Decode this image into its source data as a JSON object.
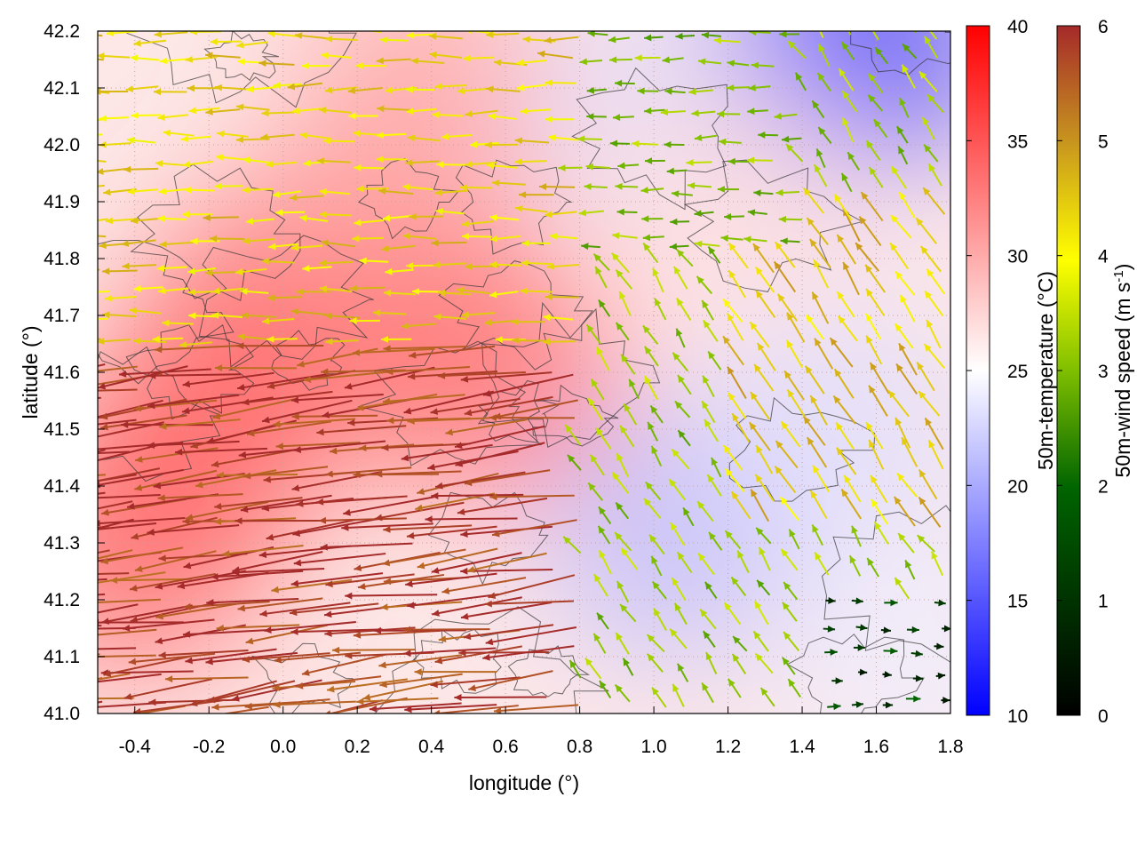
{
  "chart_data": {
    "type": "heatmap",
    "subtype": "temperature field with colored wind vectors and contour lines",
    "title": "",
    "xlabel": "longitude (°)",
    "ylabel": "latitude (°)",
    "xlim": [
      -0.5,
      1.8
    ],
    "ylim": [
      41.0,
      42.2
    ],
    "x_ticks": [
      "-0.4",
      "-0.2",
      "0.0",
      "0.2",
      "0.4",
      "0.6",
      "0.8",
      "1.0",
      "1.2",
      "1.4",
      "1.6",
      "1.8"
    ],
    "y_ticks": [
      "41.0",
      "41.1",
      "41.2",
      "41.3",
      "41.4",
      "41.5",
      "41.6",
      "41.7",
      "41.8",
      "41.9",
      "42.0",
      "42.1",
      "42.2"
    ],
    "grid": "dotted",
    "colorbars": [
      {
        "name": "temperature",
        "label": "50m-temperature (°C)",
        "range": [
          10,
          40
        ],
        "ticks": [
          "10",
          "15",
          "20",
          "25",
          "30",
          "35",
          "40"
        ],
        "colors": [
          "#0000ff",
          "#ffffff",
          "#ff0000"
        ]
      },
      {
        "name": "wind",
        "label_main": "50m-wind speed (m s",
        "label_sup": "-1",
        "label_end": ")",
        "range": [
          0,
          6
        ],
        "ticks": [
          "0",
          "1",
          "2",
          "3",
          "4",
          "5",
          "6"
        ],
        "colors": [
          "#000000",
          "#006400",
          "#7fbf00",
          "#ffff00",
          "#c8961e",
          "#a52a2a"
        ]
      }
    ],
    "temperature_field": [
      {
        "lon": -0.4,
        "lat": 41.3,
        "value": 34
      },
      {
        "lon": -0.2,
        "lat": 41.5,
        "value": 34
      },
      {
        "lon": 0.0,
        "lat": 41.7,
        "value": 34
      },
      {
        "lon": 0.3,
        "lat": 41.9,
        "value": 31
      },
      {
        "lon": 0.55,
        "lat": 41.6,
        "value": 34
      },
      {
        "lon": 0.4,
        "lat": 42.1,
        "value": 30
      },
      {
        "lon": 1.0,
        "lat": 42.05,
        "value": 23
      },
      {
        "lon": 1.55,
        "lat": 42.18,
        "value": 14
      },
      {
        "lon": 1.05,
        "lat": 41.32,
        "value": 21
      },
      {
        "lon": 1.5,
        "lat": 41.5,
        "value": 23
      },
      {
        "lon": 1.7,
        "lat": 41.1,
        "value": 24
      },
      {
        "lon": 1.2,
        "lat": 41.9,
        "value": 27
      }
    ],
    "wind_regions": [
      {
        "region": "southwest",
        "lon_range": [
          -0.5,
          0.8
        ],
        "lat_range": [
          41.0,
          41.65
        ],
        "speed": 5.8,
        "direction": "from east-southeast"
      },
      {
        "region": "northwest",
        "lon_range": [
          -0.5,
          0.8
        ],
        "lat_range": [
          41.65,
          42.2
        ],
        "speed": 4.0,
        "direction": "from east"
      },
      {
        "region": "north",
        "lon_range": [
          0.8,
          1.4
        ],
        "lat_range": [
          41.8,
          42.2
        ],
        "speed": 2.5,
        "direction": "from east"
      },
      {
        "region": "east",
        "lon_range": [
          1.2,
          1.8
        ],
        "lat_range": [
          41.3,
          41.9
        ],
        "speed": 4.2,
        "direction": "from southeast"
      },
      {
        "region": "southeast",
        "lon_range": [
          1.4,
          1.8
        ],
        "lat_range": [
          41.0,
          41.2
        ],
        "speed": 0.8,
        "direction": "from west"
      }
    ]
  }
}
